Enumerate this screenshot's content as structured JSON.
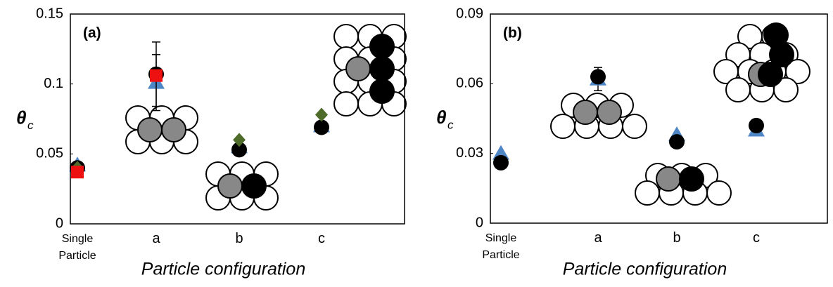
{
  "chart_data": [
    {
      "type": "scatter",
      "title": "(a)",
      "x_label": "Particle configuration",
      "y_label": "θ",
      "y_label_subscript": "c",
      "categories": [
        "Single Particle",
        "a",
        "b",
        "c"
      ],
      "ylim": [
        0,
        0.15
      ],
      "yticks": [
        0,
        0.05,
        0.1,
        0.15
      ],
      "series": [
        {
          "marker": "triangle",
          "color": "#4f86c6",
          "values": [
            0.042,
            0.101,
            0.055,
            0.07
          ],
          "errors": [
            null,
            0.02,
            null,
            null
          ]
        },
        {
          "marker": "circle",
          "color": "#000000",
          "values": [
            0.04,
            0.107,
            0.053,
            0.069
          ],
          "errors": [
            null,
            0.023,
            null,
            null
          ]
        },
        {
          "marker": "diamond",
          "color": "#4e6b2a",
          "values": [
            0.04,
            null,
            0.06,
            0.078
          ]
        },
        {
          "marker": "square",
          "color": "#ee1111",
          "values": [
            0.037,
            0.106,
            null,
            null
          ]
        }
      ]
    },
    {
      "type": "scatter",
      "title": "(b)",
      "x_label": "Particle configuration",
      "y_label": "θ",
      "y_label_subscript": "c",
      "categories": [
        "Single Particle",
        "a",
        "b",
        "c"
      ],
      "ylim": [
        0,
        0.09
      ],
      "yticks": [
        0,
        0.03,
        0.06,
        0.09
      ],
      "series": [
        {
          "marker": "triangle",
          "color": "#4f86c6",
          "values": [
            0.03,
            0.062,
            0.038,
            0.04
          ],
          "errors": [
            null,
            0.005,
            null,
            null
          ]
        },
        {
          "marker": "circle",
          "color": "#000000",
          "values": [
            0.026,
            0.063,
            0.035,
            0.042
          ]
        }
      ]
    }
  ]
}
